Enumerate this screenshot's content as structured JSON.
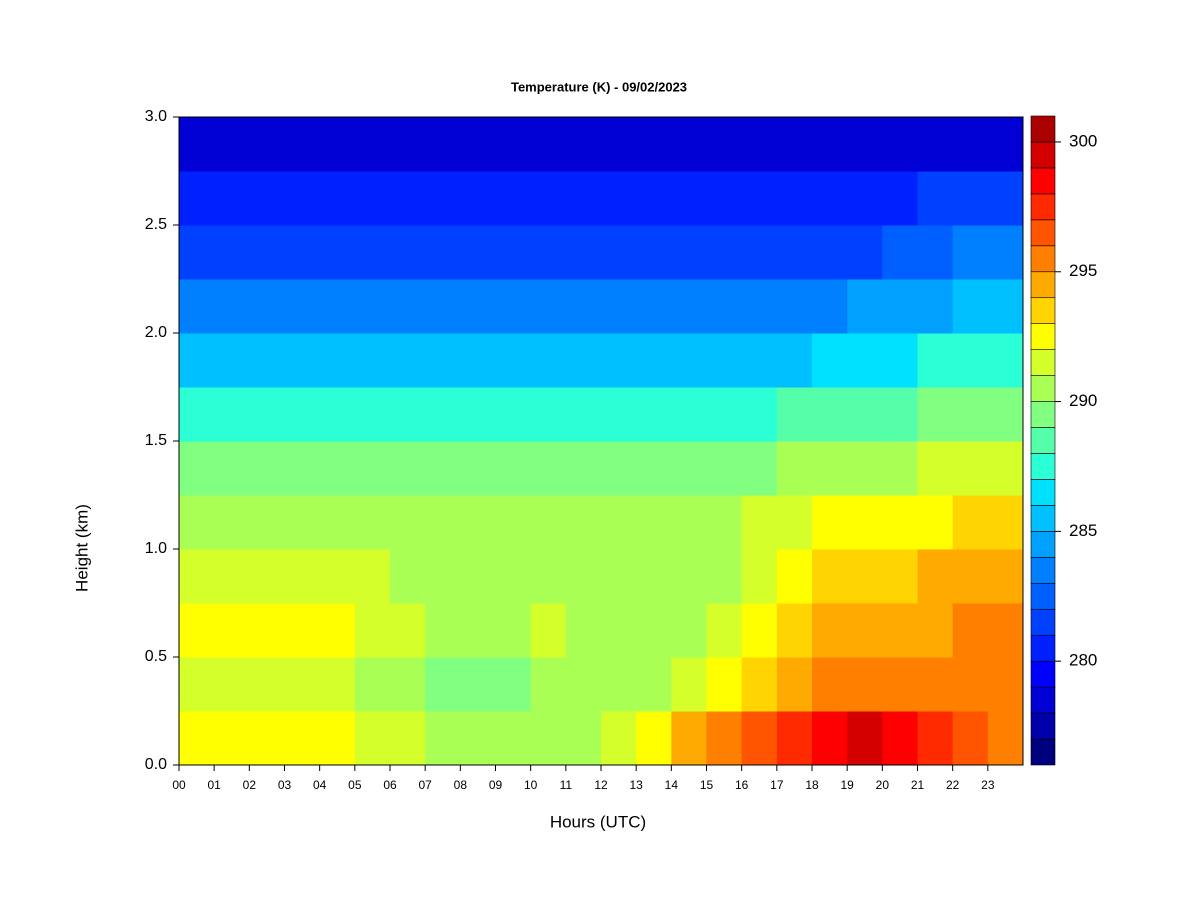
{
  "chart_data": {
    "type": "heatmap",
    "title": "Temperature (K) - 09/02/2023",
    "xlabel": "Hours (UTC)",
    "ylabel": "Height (km)",
    "x": [
      0,
      1,
      2,
      3,
      4,
      5,
      6,
      7,
      8,
      9,
      10,
      11,
      12,
      13,
      14,
      15,
      16,
      17,
      18,
      19,
      20,
      21,
      22,
      23
    ],
    "y": [
      0,
      0.25,
      0.5,
      0.75,
      1,
      1.25,
      1.5,
      1.75,
      2,
      2.25,
      2.5,
      2.75
    ],
    "z": [
      [
        292,
        292,
        292,
        292,
        292,
        291,
        291,
        290,
        290,
        290,
        290,
        290,
        291,
        292,
        294,
        295,
        296,
        297,
        298,
        299,
        298,
        297,
        296,
        295
      ],
      [
        291,
        291,
        291,
        291,
        291,
        290,
        290,
        289,
        289,
        289,
        290,
        290,
        290,
        290,
        291,
        292,
        293,
        294,
        295,
        295,
        295,
        295,
        295,
        295
      ],
      [
        292,
        292,
        292,
        292,
        292,
        291,
        291,
        290,
        290,
        290,
        291,
        290,
        290,
        290,
        290,
        291,
        292,
        293,
        294,
        294,
        294,
        294,
        295,
        295
      ],
      [
        291,
        291,
        291,
        291,
        291,
        291,
        290,
        290,
        290,
        290,
        290,
        290,
        290,
        290,
        290,
        290,
        291,
        292,
        293,
        293,
        293,
        294,
        294,
        294
      ],
      [
        290,
        290,
        290,
        290,
        290,
        290,
        290,
        290,
        290,
        290,
        290,
        290,
        290,
        290,
        290,
        290,
        291,
        291,
        292,
        292,
        292,
        292,
        293,
        293
      ],
      [
        289,
        289,
        289,
        289,
        289,
        289,
        289,
        289,
        289,
        289,
        289,
        289,
        289,
        289,
        289,
        289,
        289,
        290,
        290,
        290,
        290,
        291,
        291,
        291
      ],
      [
        287,
        287,
        287,
        287,
        287,
        287,
        287,
        287,
        287,
        287,
        287,
        287,
        287,
        287,
        287,
        287,
        287,
        288,
        288,
        288,
        288,
        289,
        289,
        289
      ],
      [
        285,
        285,
        285,
        285,
        285,
        285,
        285,
        285,
        285,
        285,
        285,
        285,
        285,
        285,
        285,
        285,
        285,
        285,
        286,
        286,
        286,
        287,
        287,
        287
      ],
      [
        283,
        283,
        283,
        283,
        283,
        283,
        283,
        283,
        283,
        283,
        283,
        283,
        283,
        283,
        283,
        283,
        283,
        283,
        283,
        284,
        284,
        284,
        285,
        285
      ],
      [
        281,
        281,
        281,
        281,
        281,
        281,
        281,
        281,
        281,
        281,
        281,
        281,
        281,
        281,
        281,
        281,
        281,
        281,
        281,
        281,
        282,
        282,
        283,
        283
      ],
      [
        280,
        280,
        280,
        280,
        280,
        280,
        280,
        280,
        280,
        280,
        280,
        280,
        280,
        280,
        280,
        280,
        280,
        280,
        280,
        280,
        280,
        281,
        281,
        281
      ],
      [
        278,
        278,
        278,
        278,
        278,
        278,
        278,
        278,
        278,
        278,
        278,
        278,
        278,
        278,
        278,
        278,
        278,
        278,
        278,
        278,
        278,
        278,
        278,
        278
      ]
    ],
    "xlim": [
      0,
      24
    ],
    "ylim": [
      0,
      3
    ],
    "xticks": [
      {
        "value": 0,
        "label": "00"
      },
      {
        "value": 1,
        "label": "01"
      },
      {
        "value": 2,
        "label": "02"
      },
      {
        "value": 3,
        "label": "03"
      },
      {
        "value": 4,
        "label": "04"
      },
      {
        "value": 5,
        "label": "05"
      },
      {
        "value": 6,
        "label": "06"
      },
      {
        "value": 7,
        "label": "07"
      },
      {
        "value": 8,
        "label": "08"
      },
      {
        "value": 9,
        "label": "09"
      },
      10,
      11,
      12,
      13,
      14,
      15,
      16,
      17,
      18,
      19,
      20,
      21,
      22,
      23
    ],
    "yticks": [
      {
        "value": 0,
        "label": "0.0"
      },
      0.5,
      {
        "value": 1,
        "label": "1.0"
      },
      1.5,
      {
        "value": 2,
        "label": "2.0"
      },
      2.5,
      {
        "value": 3,
        "label": "3.0"
      }
    ],
    "zlim": [
      276,
      301
    ],
    "zticks": [
      280,
      285,
      290,
      295,
      300
    ],
    "colors": [
      "#00007f",
      "#0000aa",
      "#0000d4",
      "#0000ff",
      "#0020ff",
      "#0040ff",
      "#0060ff",
      "#0080ff",
      "#00a0ff",
      "#00c0ff",
      "#00e0ff",
      "#2affd5",
      "#55ffaa",
      "#80ff80",
      "#aaff55",
      "#d4ff2b",
      "#ffff00",
      "#ffd400",
      "#ffaa00",
      "#ff8000",
      "#ff5500",
      "#ff2a00",
      "#ff0000",
      "#d40000",
      "#aa0000"
    ]
  }
}
